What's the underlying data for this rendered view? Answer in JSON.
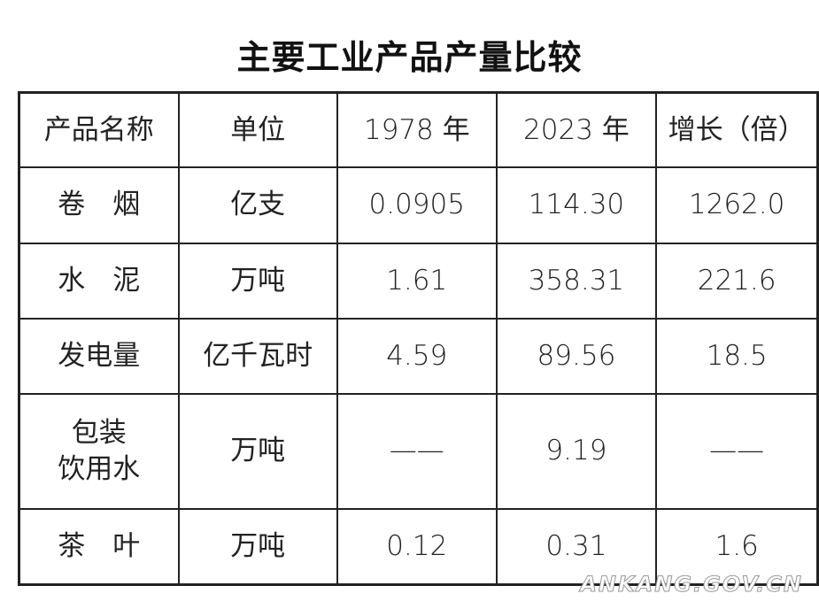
{
  "title": "主要工业产品产量比较",
  "table": {
    "header": [
      "产品名称",
      "单位",
      "1978 年",
      "2023 年",
      "增长（倍）"
    ],
    "rows": [
      [
        "卷　烟",
        "亿支",
        "0.0905",
        "114.30",
        "1262.0"
      ],
      [
        "水　泥",
        "万吨",
        "1.61",
        "358.31",
        "221.6"
      ],
      [
        "发电量",
        "亿千瓦时",
        "4.59",
        "89.56",
        "18.5"
      ],
      [
        [
          "包装",
          "饮用水"
        ],
        "万吨",
        "——",
        "9.19",
        "——"
      ],
      [
        "茶　叶",
        "万吨",
        "0.12",
        "0.31",
        "1.6"
      ]
    ]
  },
  "watermark": "ANKANG.GOV.CN"
}
